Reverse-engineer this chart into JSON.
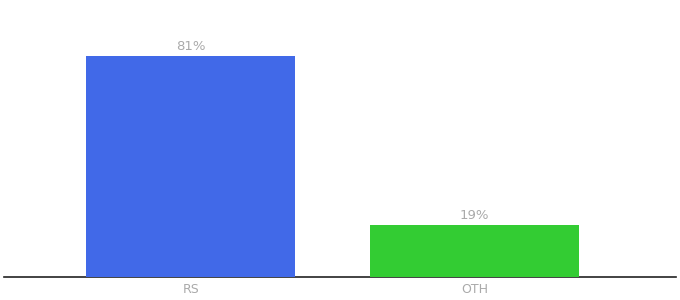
{
  "categories": [
    "RS",
    "OTH"
  ],
  "values": [
    81,
    19
  ],
  "bar_colors": [
    "#4169e8",
    "#33cc33"
  ],
  "value_labels": [
    "81%",
    "19%"
  ],
  "ylim": [
    0,
    100
  ],
  "background_color": "#ffffff",
  "label_fontsize": 9.5,
  "tick_fontsize": 9,
  "x_positions": [
    0.3,
    0.68
  ],
  "bar_width": 0.28
}
